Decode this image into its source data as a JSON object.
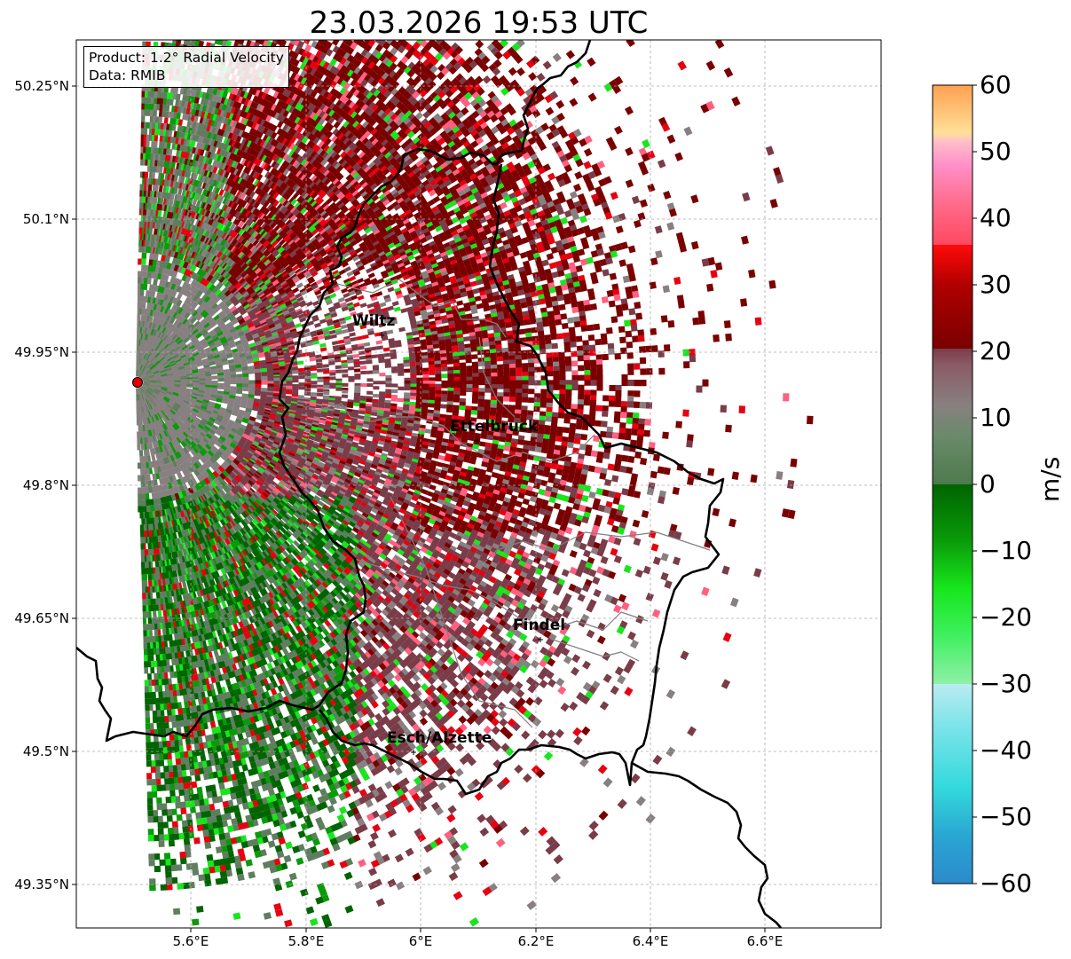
{
  "title": "23.03.2026 19:53 UTC",
  "info": {
    "product": "Product: 1.2° Radial Velocity",
    "source": "Data: RMIB"
  },
  "axes": {
    "lat_labels": [
      "50.25°N",
      "50.1°N",
      "49.95°N",
      "49.8°N",
      "49.65°N",
      "49.5°N",
      "49.35°N"
    ],
    "lon_labels": [
      "5.6°E",
      "5.8°E",
      "6°E",
      "6.2°E",
      "6.4°E",
      "6.6°E"
    ],
    "grid": true
  },
  "cities": [
    {
      "name": "Wiltz",
      "lon": 5.93,
      "lat": 49.97
    },
    {
      "name": "Ettelbruck",
      "lon": 6.1,
      "lat": 49.85
    },
    {
      "name": "Findel",
      "lon": 6.21,
      "lat": 49.63
    },
    {
      "name": "Esch/Alzette",
      "lon": 5.99,
      "lat": 49.5
    }
  ],
  "radar_site": {
    "lon": 5.51,
    "lat": 49.91
  },
  "colorbar": {
    "unit": "m/s",
    "min": -60,
    "max": 60,
    "tick_labels": [
      "60",
      "50",
      "40",
      "30",
      "20",
      "10",
      "0",
      "−10",
      "−20",
      "−30",
      "−40",
      "−50",
      "−60"
    ],
    "colors": {
      "neg_far": "#2b8acb",
      "cyan": "#33d9dc",
      "light_cyan": "#b9ecf0",
      "light_green": "#8ff0a8",
      "bright_green": "#17e61c",
      "green": "#0a9a0a",
      "dark_green": "#006400",
      "grey_green": "#5f7d5f",
      "grey": "#888080",
      "grey_red": "#7a3c48",
      "dark_red": "#7a0000",
      "red": "#e80010",
      "salmon": "#ff6080",
      "pink": "#ff90c8",
      "pale_pink": "#ffc0c8",
      "pale_yellow": "#ffe098",
      "orange": "#ffa050"
    }
  }
}
